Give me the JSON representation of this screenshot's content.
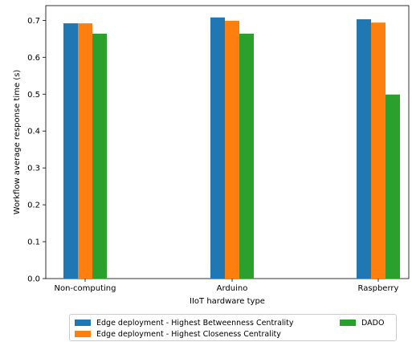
{
  "chart_data": {
    "type": "bar",
    "categories": [
      "Non-computing",
      "Arduino",
      "Raspberry"
    ],
    "series": [
      {
        "name": "Edge deployment - Highest Betweenness Centrality",
        "color": "#1f77b4",
        "values": [
          0.692,
          0.708,
          0.703
        ]
      },
      {
        "name": "Edge deployment - Highest Closeness Centrality",
        "color": "#ff7f0e",
        "values": [
          0.692,
          0.699,
          0.694
        ]
      },
      {
        "name": "DADO",
        "color": "#2ca02c",
        "values": [
          0.664,
          0.664,
          0.499
        ]
      }
    ],
    "xlabel": "IIoT hardware type",
    "ylabel": "Workflow average response time (s)",
    "ylim": [
      0,
      0.74
    ],
    "yticks": [
      "0.0",
      "0.1",
      "0.2",
      "0.3",
      "0.4",
      "0.5",
      "0.6",
      "0.7"
    ],
    "grid": false,
    "legend_position": "bottom"
  }
}
